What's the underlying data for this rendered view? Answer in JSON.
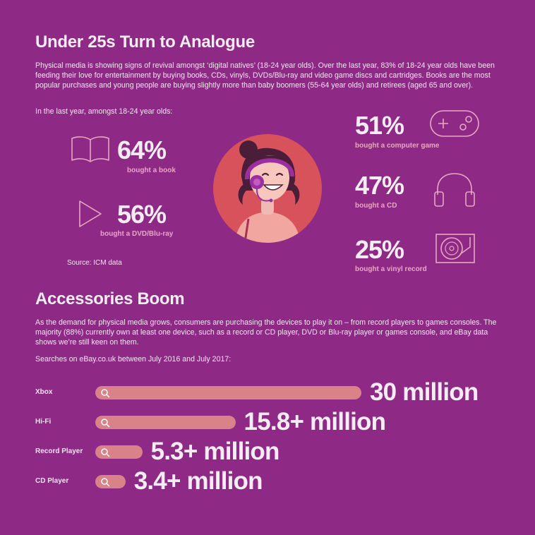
{
  "section1": {
    "title": "Under 25s Turn to Analogue",
    "intro": "Physical media is showing signs of revival amongst ‘digital natives’ (18-24 year olds). Over the last year, 83% of 18-24 year olds have been feeding their love for entertainment by buying books, CDs, vinyls, DVDs/Blu-ray and video game discs and cartridges. Books are the most popular purchases and young people are buying slightly more than baby boomers (55-64 year olds) and retirees (aged 65 and over).",
    "lead": "In the last year, amongst 18-24 year olds:",
    "source": "Source: ICM data"
  },
  "section2": {
    "title": "Accessories Boom",
    "intro": "As the demand for physical media grows, consumers are purchasing the devices to play it on – from record players to games consoles. The majority (88%) currently own at least one device, such as a record or CD player, DVD or Blu-ray player or games console, and eBay data shows we’re still keen on them.",
    "lead": "Searches on eBay.co.uk between July 2016 and July 2017:"
  },
  "colors": {
    "background": "#8e2a86",
    "accent_pink": "#e8a7bf",
    "bar": "#d98287",
    "avatar_circle": "#d8525b"
  },
  "chart_data": [
    {
      "type": "table",
      "rows": [
        {
          "label": "bought a book",
          "value": 64,
          "display": "64%",
          "icon": "book-icon"
        },
        {
          "label": "bought a DVD/Blu-ray",
          "value": 56,
          "display": "56%",
          "icon": "play-icon"
        },
        {
          "label": "bought a computer game",
          "value": 51,
          "display": "51%",
          "icon": "gamepad-icon"
        },
        {
          "label": "bought a CD",
          "value": 47,
          "display": "47%",
          "icon": "headphones-icon"
        },
        {
          "label": "bought a vinyl record",
          "value": 25,
          "display": "25%",
          "icon": "record-player-icon"
        }
      ]
    },
    {
      "type": "bar",
      "categories": [
        "Xbox",
        "Hi-Fi",
        "Record Player",
        "CD Player"
      ],
      "values": [
        30,
        15.8,
        5.3,
        3.4
      ],
      "value_labels": [
        "30 million",
        "15.8+ million",
        "5.3+ million",
        "3.4+ million"
      ],
      "xlim": [
        0,
        30
      ]
    }
  ]
}
